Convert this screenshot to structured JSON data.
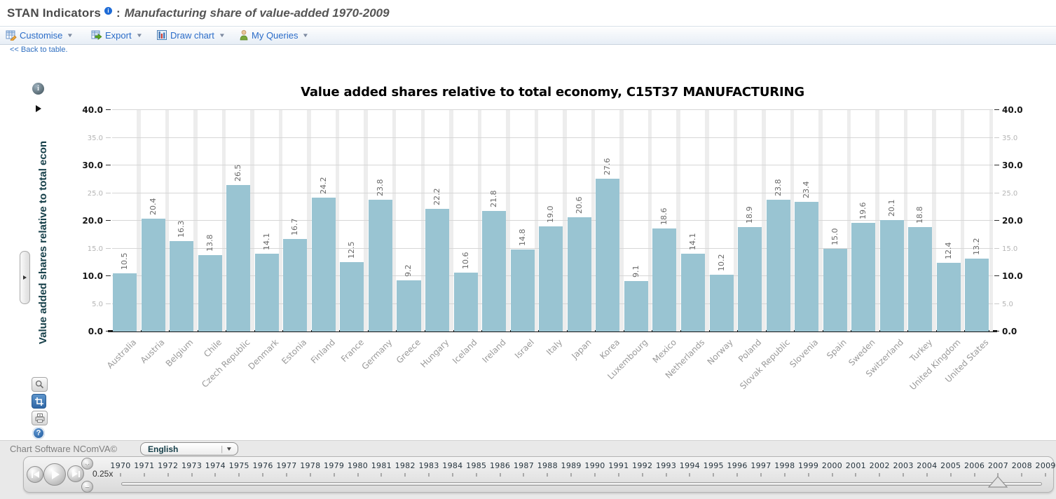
{
  "header": {
    "app_title": "STAN Indicators",
    "separator": ":",
    "subtitle": "Manufacturing share of value-added 1970-2009"
  },
  "toolbar": {
    "items": [
      {
        "label": "Customise"
      },
      {
        "label": "Export"
      },
      {
        "label": "Draw chart"
      },
      {
        "label": "My Queries"
      }
    ]
  },
  "back_link": "<< Back to table.",
  "chart_data": {
    "type": "bar",
    "title": "Value added shares relative to total economy, C15T37 MANUFACTURING",
    "ylabel": "Value added shares relative to total econ",
    "categories": [
      "Australia",
      "Austria",
      "Belgium",
      "Chile",
      "Czech Republic",
      "Denmark",
      "Estonia",
      "Finland",
      "France",
      "Germany",
      "Greece",
      "Hungary",
      "Iceland",
      "Ireland",
      "Israel",
      "Italy",
      "Japan",
      "Korea",
      "Luxembourg",
      "Mexico",
      "Netherlands",
      "Norway",
      "Poland",
      "Slovak Republic",
      "Slovenia",
      "Spain",
      "Sweden",
      "Switzerland",
      "Turkey",
      "United Kingdom",
      "United States"
    ],
    "values": [
      10.5,
      20.4,
      16.3,
      13.8,
      26.5,
      14.1,
      16.7,
      24.2,
      12.5,
      23.8,
      9.2,
      22.2,
      10.6,
      21.8,
      14.8,
      19.0,
      20.6,
      27.6,
      9.1,
      18.6,
      14.1,
      10.2,
      18.9,
      23.8,
      23.4,
      15.0,
      19.6,
      20.1,
      18.8,
      12.4,
      13.2
    ],
    "ylim": [
      0,
      40
    ],
    "yticks": [
      0,
      5,
      10,
      15,
      20,
      25,
      30,
      35,
      40
    ],
    "grid": true,
    "value_labels": true,
    "bar_color": "#99c4d2",
    "legend": "none"
  },
  "footer": {
    "credit": "Chart Software NComVA©",
    "language": {
      "value": "English"
    },
    "timeline": {
      "speed_label": "0.25x",
      "years": [
        1970,
        1971,
        1972,
        1973,
        1974,
        1975,
        1976,
        1977,
        1978,
        1979,
        1980,
        1981,
        1982,
        1983,
        1984,
        1985,
        1986,
        1987,
        1988,
        1989,
        1990,
        1991,
        1992,
        1993,
        1994,
        1995,
        1996,
        1997,
        1998,
        1999,
        2000,
        2001,
        2002,
        2003,
        2004,
        2005,
        2006,
        2007,
        2008,
        2009
      ],
      "selected_year": 2007
    }
  }
}
